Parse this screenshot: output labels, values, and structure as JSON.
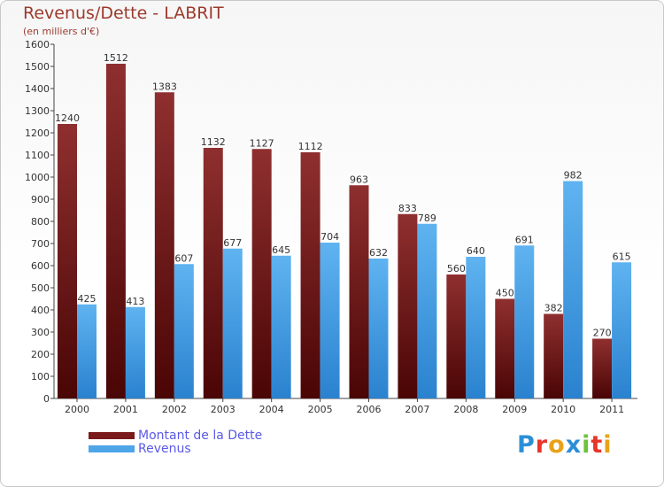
{
  "chart_data": {
    "type": "bar",
    "title": "Revenus/Dette - LABRIT",
    "subtitle": "(en milliers d'€)",
    "categories": [
      "2000",
      "2001",
      "2002",
      "2003",
      "2004",
      "2005",
      "2006",
      "2007",
      "2008",
      "2009",
      "2010",
      "2011"
    ],
    "series": [
      {
        "name": "Montant de la Dette",
        "color": "#7a1a1a",
        "values": [
          1240,
          1512,
          1383,
          1132,
          1127,
          1112,
          963,
          833,
          560,
          450,
          382,
          270
        ]
      },
      {
        "name": "Revenus",
        "color": "#4ea5e8",
        "values": [
          425,
          413,
          607,
          677,
          645,
          704,
          632,
          789,
          640,
          691,
          982,
          615
        ]
      }
    ],
    "ylim": [
      0,
      1600
    ],
    "yticks": [
      0,
      100,
      200,
      300,
      400,
      500,
      600,
      700,
      800,
      900,
      1000,
      1100,
      1200,
      1300,
      1400,
      1500,
      1600
    ],
    "grid": false,
    "legend": "bottom-left"
  },
  "branding": {
    "logo_text": "Proxiti",
    "logo_colors": [
      "#2b8fd6",
      "#e8352a",
      "#e8a21a",
      "#2b8fd6",
      "#6cc33a",
      "#e8352a",
      "#e8a21a"
    ]
  }
}
